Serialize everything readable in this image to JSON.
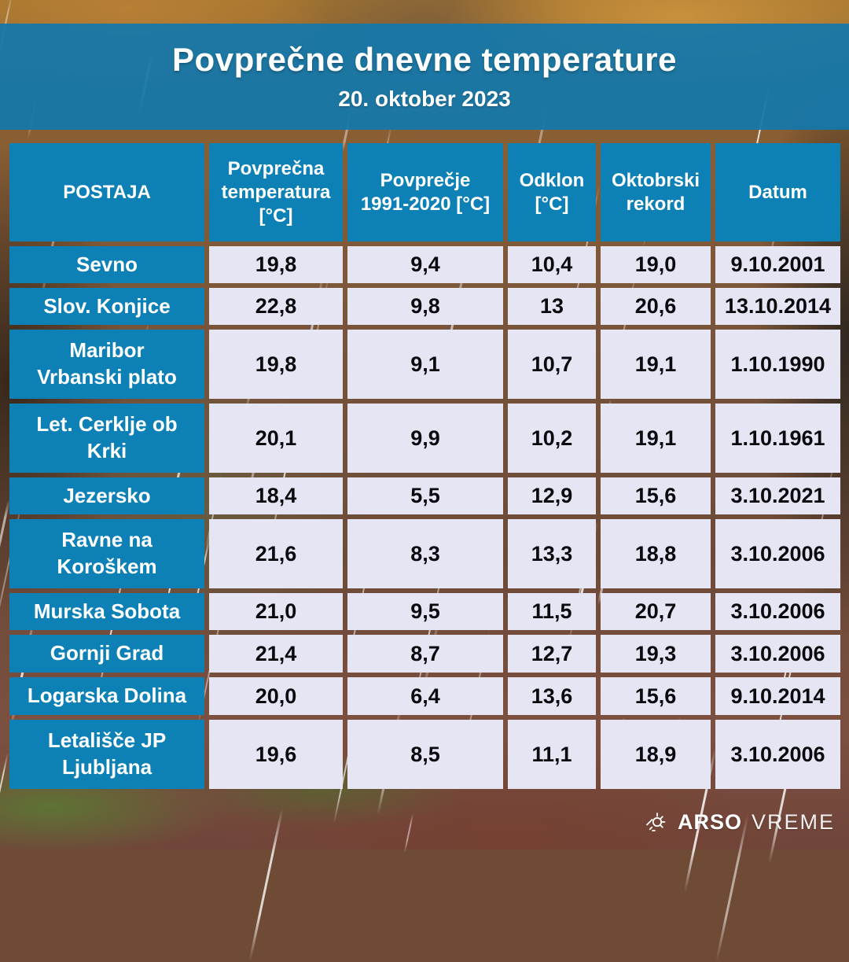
{
  "header": {
    "title": "Povprečne dnevne temperature",
    "subtitle": "20. oktober 2023"
  },
  "chart_data": {
    "type": "table",
    "title": "Povprečne dnevne temperature",
    "subtitle": "20. oktober 2023",
    "columns": [
      "POSTAJA",
      "Povprečna\ntemperatura\n[°C]",
      "Povprečje\n1991-2020 [°C]",
      "Odklon\n[°C]",
      "Oktobrski\nrekord",
      "Datum"
    ],
    "rows": [
      [
        "Sevno",
        "19,8",
        "9,4",
        "10,4",
        "19,0",
        "9.10.2001"
      ],
      [
        "Slov. Konjice",
        "22,8",
        "9,8",
        "13",
        "20,6",
        "13.10.2014"
      ],
      [
        "Maribor\nVrbanski plato",
        "19,8",
        "9,1",
        "10,7",
        "19,1",
        "1.10.1990"
      ],
      [
        "Let. Cerklje ob\nKrki",
        "20,1",
        "9,9",
        "10,2",
        "19,1",
        "1.10.1961"
      ],
      [
        "Jezersko",
        "18,4",
        "5,5",
        "12,9",
        "15,6",
        "3.10.2021"
      ],
      [
        "Ravne na\nKoroškem",
        "21,6",
        "8,3",
        "13,3",
        "18,8",
        "3.10.2006"
      ],
      [
        "Murska Sobota",
        "21,0",
        "9,5",
        "11,5",
        "20,7",
        "3.10.2006"
      ],
      [
        "Gornji Grad",
        "21,4",
        "8,7",
        "12,7",
        "19,3",
        "3.10.2006"
      ],
      [
        "Logarska Dolina",
        "20,0",
        "6,4",
        "13,6",
        "15,6",
        "9.10.2014"
      ],
      [
        "Letališče JP\nLjubljana",
        "19,6",
        "8,5",
        "11,1",
        "18,9",
        "3.10.2006"
      ]
    ]
  },
  "footer": {
    "brand_bold": "ARSO",
    "brand_light": "VREME"
  },
  "colors": {
    "banner_blue": "rgba(19,119,171,0.93)",
    "cell_blue": "#0d81b6",
    "data_cell": "#e5e5f4",
    "data_text": "#0b0b0f",
    "header_text": "#ffffff"
  }
}
